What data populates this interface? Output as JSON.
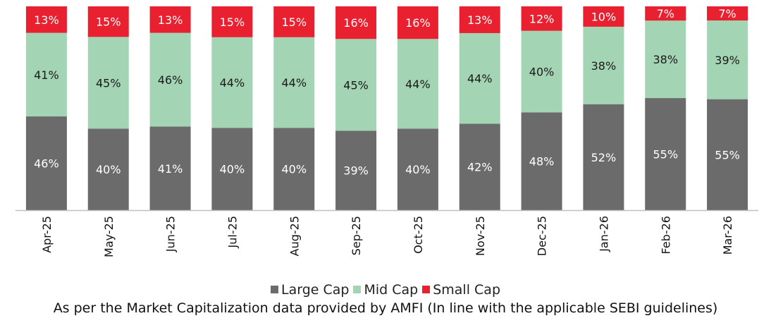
{
  "chart_data": {
    "type": "bar",
    "stacked": true,
    "categories": [
      "Apr-25",
      "May-25",
      "Jun-25",
      "Jul-25",
      "Aug-25",
      "Sep-25",
      "Oct-25",
      "Nov-25",
      "Dec-25",
      "Jan-26",
      "Feb-26",
      "Mar-26"
    ],
    "series": [
      {
        "name": "Large Cap",
        "color": "#6b6b6b",
        "values": [
          46,
          40,
          41,
          40,
          40,
          39,
          40,
          42,
          48,
          52,
          55,
          55
        ]
      },
      {
        "name": "Mid Cap",
        "color": "#a3d4b4",
        "values": [
          41,
          45,
          46,
          44,
          44,
          45,
          44,
          44,
          40,
          38,
          38,
          39
        ]
      },
      {
        "name": "Small Cap",
        "color": "#e8202f",
        "values": [
          13,
          15,
          13,
          15,
          15,
          16,
          16,
          13,
          12,
          10,
          7,
          7
        ]
      }
    ],
    "value_suffix": "%",
    "ylim": [
      0,
      100
    ],
    "legend_position": "bottom",
    "title": "",
    "xlabel": "",
    "ylabel": ""
  },
  "footnote": "As per the Market Capitalization data provided by AMFI (In line with the applicable SEBI guidelines)"
}
